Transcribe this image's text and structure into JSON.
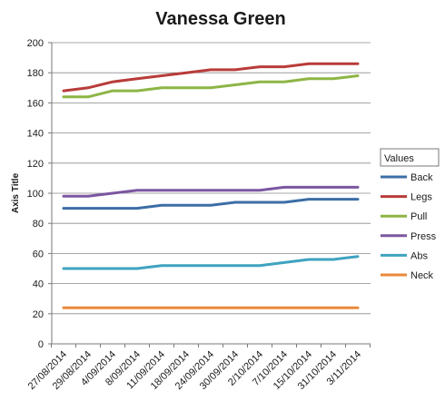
{
  "chart_data": {
    "type": "line",
    "title": "Vanessa Green",
    "ylabel": "Axis Title",
    "xlabel": "",
    "ylim": [
      0,
      200
    ],
    "yticks": [
      0,
      20,
      40,
      60,
      80,
      100,
      120,
      140,
      160,
      180,
      200
    ],
    "grid": true,
    "legend_title": "Values",
    "legend_position": "right",
    "categories": [
      "27/08/2014",
      "29/08/2014",
      "4/09/2014",
      "8/09/2014",
      "11/09/2014",
      "18/09/2014",
      "24/09/2014",
      "30/09/2014",
      "2/10/2014",
      "7/10/2014",
      "15/10/2014",
      "31/10/2014",
      "3/11/2014"
    ],
    "series": [
      {
        "name": "Back",
        "color": "#3C6EA6",
        "values": [
          90,
          90,
          90,
          90,
          92,
          92,
          92,
          94,
          94,
          94,
          96,
          96,
          96
        ]
      },
      {
        "name": "Legs",
        "color": "#B83C3A",
        "values": [
          168,
          170,
          174,
          176,
          178,
          180,
          182,
          182,
          184,
          184,
          186,
          186,
          186
        ]
      },
      {
        "name": "Pull",
        "color": "#8DB545",
        "values": [
          164,
          164,
          168,
          168,
          170,
          170,
          170,
          172,
          174,
          174,
          176,
          176,
          178
        ]
      },
      {
        "name": "Press",
        "color": "#7B56A0",
        "values": [
          98,
          98,
          100,
          102,
          102,
          102,
          102,
          102,
          102,
          104,
          104,
          104,
          104
        ]
      },
      {
        "name": "Abs",
        "color": "#3FA3C0",
        "values": [
          50,
          50,
          50,
          50,
          52,
          52,
          52,
          52,
          52,
          54,
          56,
          56,
          58
        ]
      },
      {
        "name": "Neck",
        "color": "#E9893A",
        "values": [
          24,
          24,
          24,
          24,
          24,
          24,
          24,
          24,
          24,
          24,
          24,
          24,
          24
        ]
      }
    ]
  }
}
